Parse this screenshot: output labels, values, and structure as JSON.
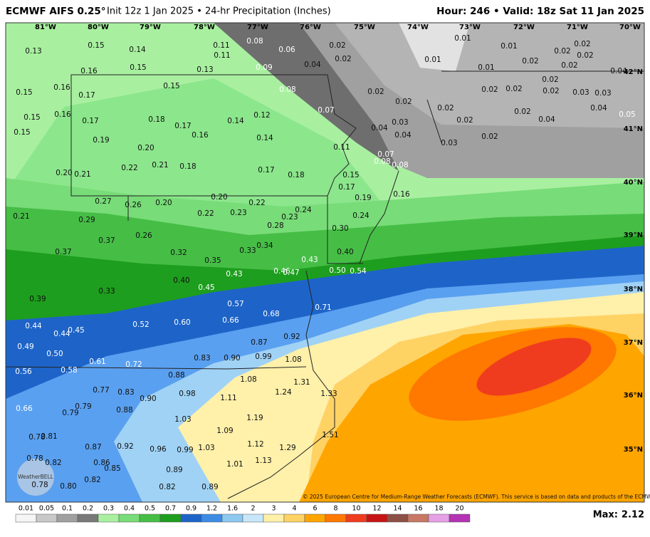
{
  "header": {
    "title_bold": "ECMWF AIFS 0.25°",
    "title_rest": "Init 12z 1 Jan 2025 • 24-hr Precipitation (Inches)",
    "valid": "Hour: 246 • Valid: 18z Sat 11 Jan 2025"
  },
  "map": {
    "lon_labels": [
      "81°W",
      "80°W",
      "79°W",
      "78°W",
      "77°W",
      "76°W",
      "75°W",
      "74°W",
      "73°W",
      "72°W",
      "71°W",
      "70°W"
    ],
    "lat_labels": [
      "42°N",
      "41°N",
      "40°N",
      "39°N",
      "38°N",
      "37°N",
      "36°N",
      "35°N"
    ],
    "point_values": {
      "values": [
        0.13,
        0.15,
        0.14,
        0.11,
        0.11,
        0.08,
        0.06,
        0.02,
        0.02,
        0.01,
        0.01,
        0.02,
        0.02,
        0.02,
        0.16,
        0.15,
        0.13,
        0.09,
        0.04,
        0.01,
        0.01,
        0.02,
        0.02,
        0.04,
        0.15,
        0.16,
        0.17,
        0.15,
        0.08,
        0.02,
        0.02,
        0.02,
        0.02,
        0.02,
        0.02,
        0.03,
        0.03,
        0.15,
        0.16,
        0.17,
        0.18,
        0.17,
        0.14,
        0.12,
        0.07,
        0.03,
        0.02,
        0.02,
        0.02,
        0.04,
        0.04,
        0.05,
        0.15,
        0.19,
        0.16,
        0.14,
        0.04,
        0.04,
        0.02,
        0.03,
        0.11,
        0.2,
        0.22,
        0.21,
        0.18,
        0.17,
        0.18,
        0.07,
        0.08,
        0.08,
        0.2,
        0.21,
        0.15,
        0.17,
        0.19,
        0.16,
        0.27,
        0.26,
        0.2,
        0.2,
        0.22,
        0.22,
        0.23,
        0.24,
        0.21,
        0.29,
        0.24,
        0.23,
        0.28,
        0.3,
        0.26,
        0.37,
        0.34,
        0.37,
        0.32,
        0.33,
        0.4,
        0.35,
        0.43,
        0.5,
        0.54,
        0.43,
        0.46,
        0.47,
        0.4,
        0.45,
        0.33,
        0.39,
        0.57,
        0.68,
        0.71,
        0.66,
        0.44,
        0.52,
        0.6,
        0.44,
        0.45,
        0.92,
        0.87,
        0.49,
        0.5,
        0.83,
        0.9,
        0.99,
        1.08,
        0.61,
        0.72,
        0.56,
        0.58,
        0.88,
        1.08,
        1.24,
        1.31,
        1.33,
        0.77,
        0.83,
        0.98,
        1.11,
        0.9,
        0.66,
        0.79,
        0.79,
        0.88,
        1.19,
        1.03,
        1.09,
        1.51,
        0.78,
        0.81,
        0.87,
        0.92,
        0.96,
        0.99,
        1.03,
        1.12,
        1.29,
        0.78,
        0.82,
        0.86,
        0.85,
        0.89,
        1.01,
        1.13,
        0.78,
        0.8,
        0.82,
        0.82,
        0.89
      ],
      "value_labels": [
        "0.13",
        "0.15",
        "0.14",
        "0.11",
        "0.11",
        "0.08",
        "0.06",
        "0.02",
        "0.02",
        "0.01",
        "0.01",
        "0.02",
        "0.02",
        "0.02",
        "0.16",
        "0.15",
        "0.13",
        "0.09",
        "0.04",
        "0.01",
        "0.01",
        "0.02",
        "0.02",
        "0.04",
        "0.15",
        "0.16",
        "0.17",
        "0.15",
        "0.08",
        "0.02",
        "0.02",
        "0.02",
        "0.02",
        "0.02",
        "0.02",
        "0.03",
        "0.03",
        "0.15",
        "0.16",
        "0.17",
        "0.18",
        "0.17",
        "0.14",
        "0.12",
        "0.07",
        "0.03",
        "0.02",
        "0.02",
        "0.02",
        "0.04",
        "0.04",
        "0.05",
        "0.15",
        "0.19",
        "0.16",
        "0.14",
        "0.04",
        "0.04",
        "0.02",
        "0.03",
        "0.11",
        "0.20",
        "0.22",
        "0.21",
        "0.18",
        "0.17",
        "0.18",
        "0.07",
        "0.08",
        "0.08",
        "0.20",
        "0.21",
        "0.15",
        "0.17",
        "0.19",
        "0.16",
        "0.27",
        "0.26",
        "0.20",
        "0.20",
        "0.22",
        "0.22",
        "0.23",
        "0.24",
        "0.21",
        "0.29",
        "0.24",
        "0.23",
        "0.28",
        "0.30",
        "0.26",
        "0.37",
        "0.34",
        "0.37",
        "0.32",
        "0.33",
        "0.40",
        "0.35",
        "0.43",
        "0.50",
        "0.54",
        "0.43",
        "0.46",
        "0.47",
        "0.40",
        "0.45",
        "0.33",
        "0.39",
        "0.57",
        "0.68",
        "0.71",
        "0.66",
        "0.44",
        "0.52",
        "0.60",
        "0.44",
        "0.45",
        "0.92",
        "0.87",
        "0.49",
        "0.50",
        "0.83",
        "0.90",
        "0.99",
        "1.08",
        "0.61",
        "0.72",
        "0.56",
        "0.58",
        "0.88",
        "1.08",
        "1.24",
        "1.31",
        "1.33",
        "0.77",
        "0.83",
        "0.98",
        "1.11",
        "0.90",
        "0.66",
        "0.79",
        "0.79",
        "0.88",
        "1.19",
        "1.03",
        "1.09",
        "1.51",
        "0.78",
        "0.81",
        "0.87",
        "0.92",
        "0.96",
        "0.99",
        "1.03",
        "1.12",
        "1.29",
        "0.78",
        "0.82",
        "0.86",
        "0.85",
        "0.89",
        "1.01",
        "1.13",
        "0.78",
        "0.80",
        "0.82",
        "0.82",
        "0.89"
      ]
    },
    "logo": "WeatherBELL",
    "copyright": "© 2025 European Centre for Medium-Range Weather Forecasts (ECMWF). This service is based on data and products of the ECMWF."
  },
  "legend": {
    "ticks": [
      0.01,
      0.05,
      0.1,
      0.2,
      0.3,
      0.4,
      0.5,
      0.7,
      0.9,
      1.2,
      1.6,
      2,
      3,
      4,
      6,
      8,
      10,
      12,
      14,
      16,
      18,
      20
    ],
    "colors": [
      "#f5f5f5",
      "#c8c8c8",
      "#a0a0a0",
      "#787878",
      "#a8f0a0",
      "#78dc78",
      "#46be46",
      "#1e9e1e",
      "#1e64c8",
      "#3c8ce6",
      "#8cc8f0",
      "#c8e6fa",
      "#fff0aa",
      "#ffd264",
      "#ffa500",
      "#ff7800",
      "#f03c1e",
      "#c81414",
      "#8c5046",
      "#c87864",
      "#e6a0e6",
      "#b432b4"
    ]
  },
  "max": {
    "label": "Max:",
    "value": 2.12
  }
}
